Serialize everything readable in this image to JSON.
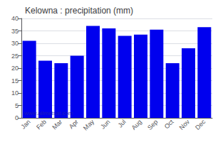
{
  "chart_data": {
    "type": "bar",
    "title": "Kelowna : precipitation (mm)",
    "categories": [
      "Jan",
      "Feb",
      "Mar",
      "Apr",
      "May",
      "Jun",
      "Jul",
      "Aug",
      "Sep",
      "Oct",
      "Nov",
      "Dec"
    ],
    "values": [
      31,
      23,
      22,
      25,
      37,
      36,
      33,
      33.5,
      35.5,
      22,
      28,
      36.5
    ],
    "color": "#0000EE",
    "ylim": [
      0,
      40
    ],
    "yticks": [
      0,
      5,
      10,
      15,
      20,
      25,
      30,
      35,
      40
    ],
    "grid": true,
    "annotations": [
      "www.allmetsat.com"
    ]
  }
}
